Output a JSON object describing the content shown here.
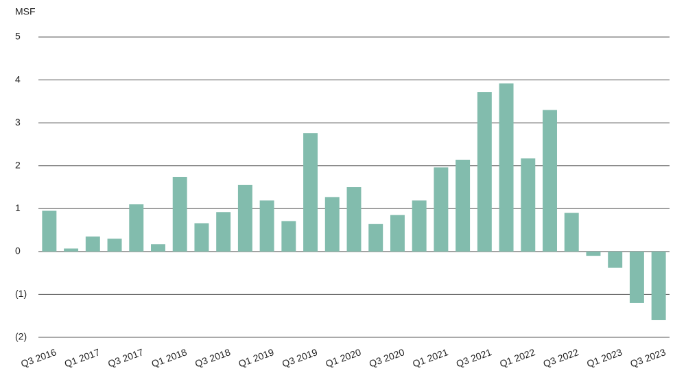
{
  "chart_data": {
    "type": "bar",
    "y_axis_label": "MSF",
    "categories": [
      "Q3 2016",
      null,
      "Q1 2017",
      null,
      "Q3 2017",
      null,
      "Q1 2018",
      null,
      "Q3 2018",
      null,
      "Q1 2019",
      null,
      "Q3 2019",
      null,
      "Q1 2020",
      null,
      "Q3 2020",
      null,
      "Q1 2021",
      null,
      "Q3 2021",
      null,
      "Q1 2022",
      null,
      "Q3 2022",
      null,
      "Q1 2023",
      null,
      "Q3 2023"
    ],
    "values": [
      0.95,
      0.07,
      0.35,
      0.3,
      1.1,
      0.17,
      1.74,
      0.66,
      0.92,
      1.55,
      1.19,
      0.71,
      2.76,
      1.27,
      1.5,
      0.64,
      0.85,
      1.19,
      1.96,
      2.14,
      3.72,
      3.92,
      2.17,
      3.3,
      0.9,
      -0.1,
      -0.38,
      -1.2,
      -1.6
    ],
    "color": "#82bcad",
    "ylim": [
      -2,
      5
    ],
    "yticks": [
      {
        "value": -2,
        "label": "(2)"
      },
      {
        "value": -1,
        "label": "(1)"
      },
      0,
      1,
      2,
      3,
      4,
      5
    ],
    "grid": true
  }
}
